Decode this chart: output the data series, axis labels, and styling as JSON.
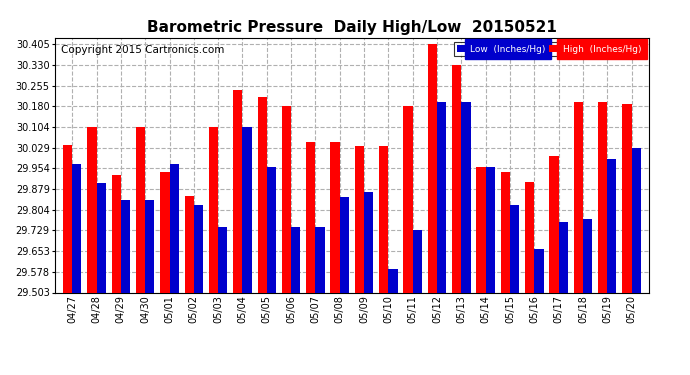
{
  "title": "Barometric Pressure  Daily High/Low  20150521",
  "copyright": "Copyright 2015 Cartronics.com",
  "legend_low": "Low  (Inches/Hg)",
  "legend_high": "High  (Inches/Hg)",
  "dates": [
    "04/27",
    "04/28",
    "04/29",
    "04/30",
    "05/01",
    "05/02",
    "05/03",
    "05/04",
    "05/05",
    "05/06",
    "05/07",
    "05/08",
    "05/09",
    "05/10",
    "05/11",
    "05/12",
    "05/13",
    "05/14",
    "05/15",
    "05/16",
    "05/17",
    "05/18",
    "05/19",
    "05/20"
  ],
  "high": [
    30.04,
    30.104,
    29.93,
    30.104,
    29.94,
    29.854,
    30.104,
    30.24,
    30.215,
    30.18,
    30.05,
    30.05,
    30.035,
    30.035,
    30.18,
    30.405,
    30.33,
    29.96,
    29.94,
    29.904,
    30.0,
    30.195,
    30.195,
    30.19
  ],
  "low": [
    29.97,
    29.9,
    29.84,
    29.84,
    29.97,
    29.82,
    29.74,
    30.104,
    29.96,
    29.74,
    29.74,
    29.85,
    29.87,
    29.59,
    29.73,
    30.195,
    30.195,
    29.96,
    29.82,
    29.66,
    29.76,
    29.77,
    29.99,
    30.029
  ],
  "ylim_min": 29.503,
  "ylim_max": 30.43,
  "yticks": [
    29.503,
    29.578,
    29.653,
    29.729,
    29.804,
    29.879,
    29.954,
    30.029,
    30.104,
    30.18,
    30.255,
    30.33,
    30.405
  ],
  "bar_width": 0.38,
  "high_color": "#ff0000",
  "low_color": "#0000cc",
  "bg_color": "#ffffff",
  "grid_color": "#b0b0b0",
  "title_fontsize": 11,
  "tick_fontsize": 7,
  "copyright_fontsize": 7.5
}
